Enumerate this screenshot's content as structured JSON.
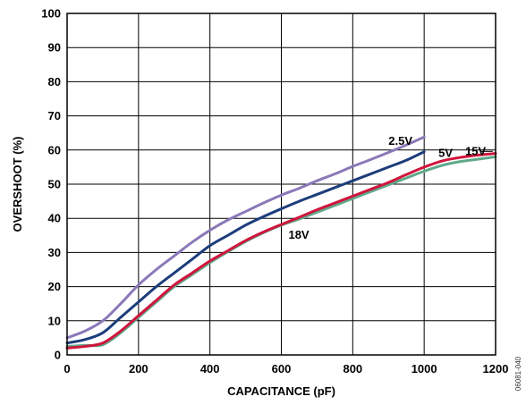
{
  "chart_data": {
    "type": "line",
    "title": "",
    "xlabel": "CAPACITANCE (pF)",
    "ylabel": "OVERSHOOT (%)",
    "xlim": [
      0,
      1200
    ],
    "ylim": [
      0,
      100
    ],
    "x_ticks": [
      0,
      200,
      400,
      600,
      800,
      1000,
      1200
    ],
    "y_ticks": [
      0,
      10,
      20,
      30,
      40,
      50,
      60,
      70,
      80,
      90,
      100
    ],
    "grid": true,
    "figure_code": "06081-040",
    "series": [
      {
        "name": "2.5V",
        "color": "#8a78b8",
        "points": [
          [
            0,
            5
          ],
          [
            50,
            7
          ],
          [
            100,
            10
          ],
          [
            150,
            15
          ],
          [
            200,
            20.5
          ],
          [
            250,
            25
          ],
          [
            300,
            29
          ],
          [
            350,
            33
          ],
          [
            400,
            36.5
          ],
          [
            450,
            39.5
          ],
          [
            500,
            42
          ],
          [
            550,
            44.5
          ],
          [
            600,
            46.8
          ],
          [
            650,
            48.8
          ],
          [
            700,
            51
          ],
          [
            750,
            53
          ],
          [
            800,
            55.2
          ],
          [
            850,
            57.2
          ],
          [
            900,
            59.3
          ],
          [
            950,
            61.5
          ],
          [
            1000,
            63.8
          ]
        ]
      },
      {
        "name": "5V",
        "color": "#1c3d7c",
        "points": [
          [
            0,
            3.5
          ],
          [
            50,
            4.5
          ],
          [
            100,
            6.5
          ],
          [
            150,
            11
          ],
          [
            200,
            15.5
          ],
          [
            250,
            20
          ],
          [
            300,
            24
          ],
          [
            350,
            28
          ],
          [
            400,
            32
          ],
          [
            450,
            35
          ],
          [
            500,
            38
          ],
          [
            550,
            40.5
          ],
          [
            600,
            42.8
          ],
          [
            650,
            45
          ],
          [
            700,
            47
          ],
          [
            750,
            49
          ],
          [
            800,
            51
          ],
          [
            850,
            53
          ],
          [
            900,
            55
          ],
          [
            950,
            57
          ],
          [
            1000,
            59.5
          ]
        ]
      },
      {
        "name": "15V",
        "color": "#d0143c",
        "points": [
          [
            0,
            2
          ],
          [
            50,
            2.5
          ],
          [
            100,
            3.5
          ],
          [
            150,
            7
          ],
          [
            200,
            11.5
          ],
          [
            250,
            16
          ],
          [
            300,
            20.5
          ],
          [
            350,
            24
          ],
          [
            400,
            27.5
          ],
          [
            450,
            30.5
          ],
          [
            500,
            33.5
          ],
          [
            550,
            36
          ],
          [
            600,
            38.2
          ],
          [
            650,
            40.3
          ],
          [
            700,
            42.5
          ],
          [
            750,
            44.5
          ],
          [
            800,
            46.5
          ],
          [
            850,
            48.5
          ],
          [
            900,
            50.5
          ],
          [
            950,
            52.8
          ],
          [
            1000,
            55
          ],
          [
            1050,
            56.8
          ],
          [
            1100,
            57.8
          ],
          [
            1150,
            58.5
          ],
          [
            1200,
            59
          ]
        ]
      },
      {
        "name": "18V",
        "color": "#5fa88a",
        "points": [
          [
            0,
            2.5
          ],
          [
            50,
            2.8
          ],
          [
            100,
            3
          ],
          [
            150,
            6.5
          ],
          [
            200,
            11
          ],
          [
            250,
            15.5
          ],
          [
            300,
            20
          ],
          [
            350,
            23.5
          ],
          [
            400,
            27
          ],
          [
            450,
            30.2
          ],
          [
            500,
            33.2
          ],
          [
            550,
            35.8
          ],
          [
            600,
            38
          ],
          [
            650,
            39.8
          ],
          [
            700,
            41.8
          ],
          [
            750,
            43.8
          ],
          [
            800,
            45.8
          ],
          [
            850,
            47.8
          ],
          [
            900,
            49.8
          ],
          [
            950,
            51.8
          ],
          [
            1000,
            53.8
          ],
          [
            1050,
            55.5
          ],
          [
            1100,
            56.6
          ],
          [
            1150,
            57.3
          ],
          [
            1200,
            58
          ]
        ]
      }
    ],
    "annotations": [
      {
        "text": "2.5V",
        "x": 900,
        "y": 61.5
      },
      {
        "text": "5V",
        "x": 1040,
        "y": 58
      },
      {
        "text": "15V",
        "x": 1115,
        "y": 58.5
      },
      {
        "text": "18V",
        "x": 620,
        "y": 34
      }
    ]
  }
}
